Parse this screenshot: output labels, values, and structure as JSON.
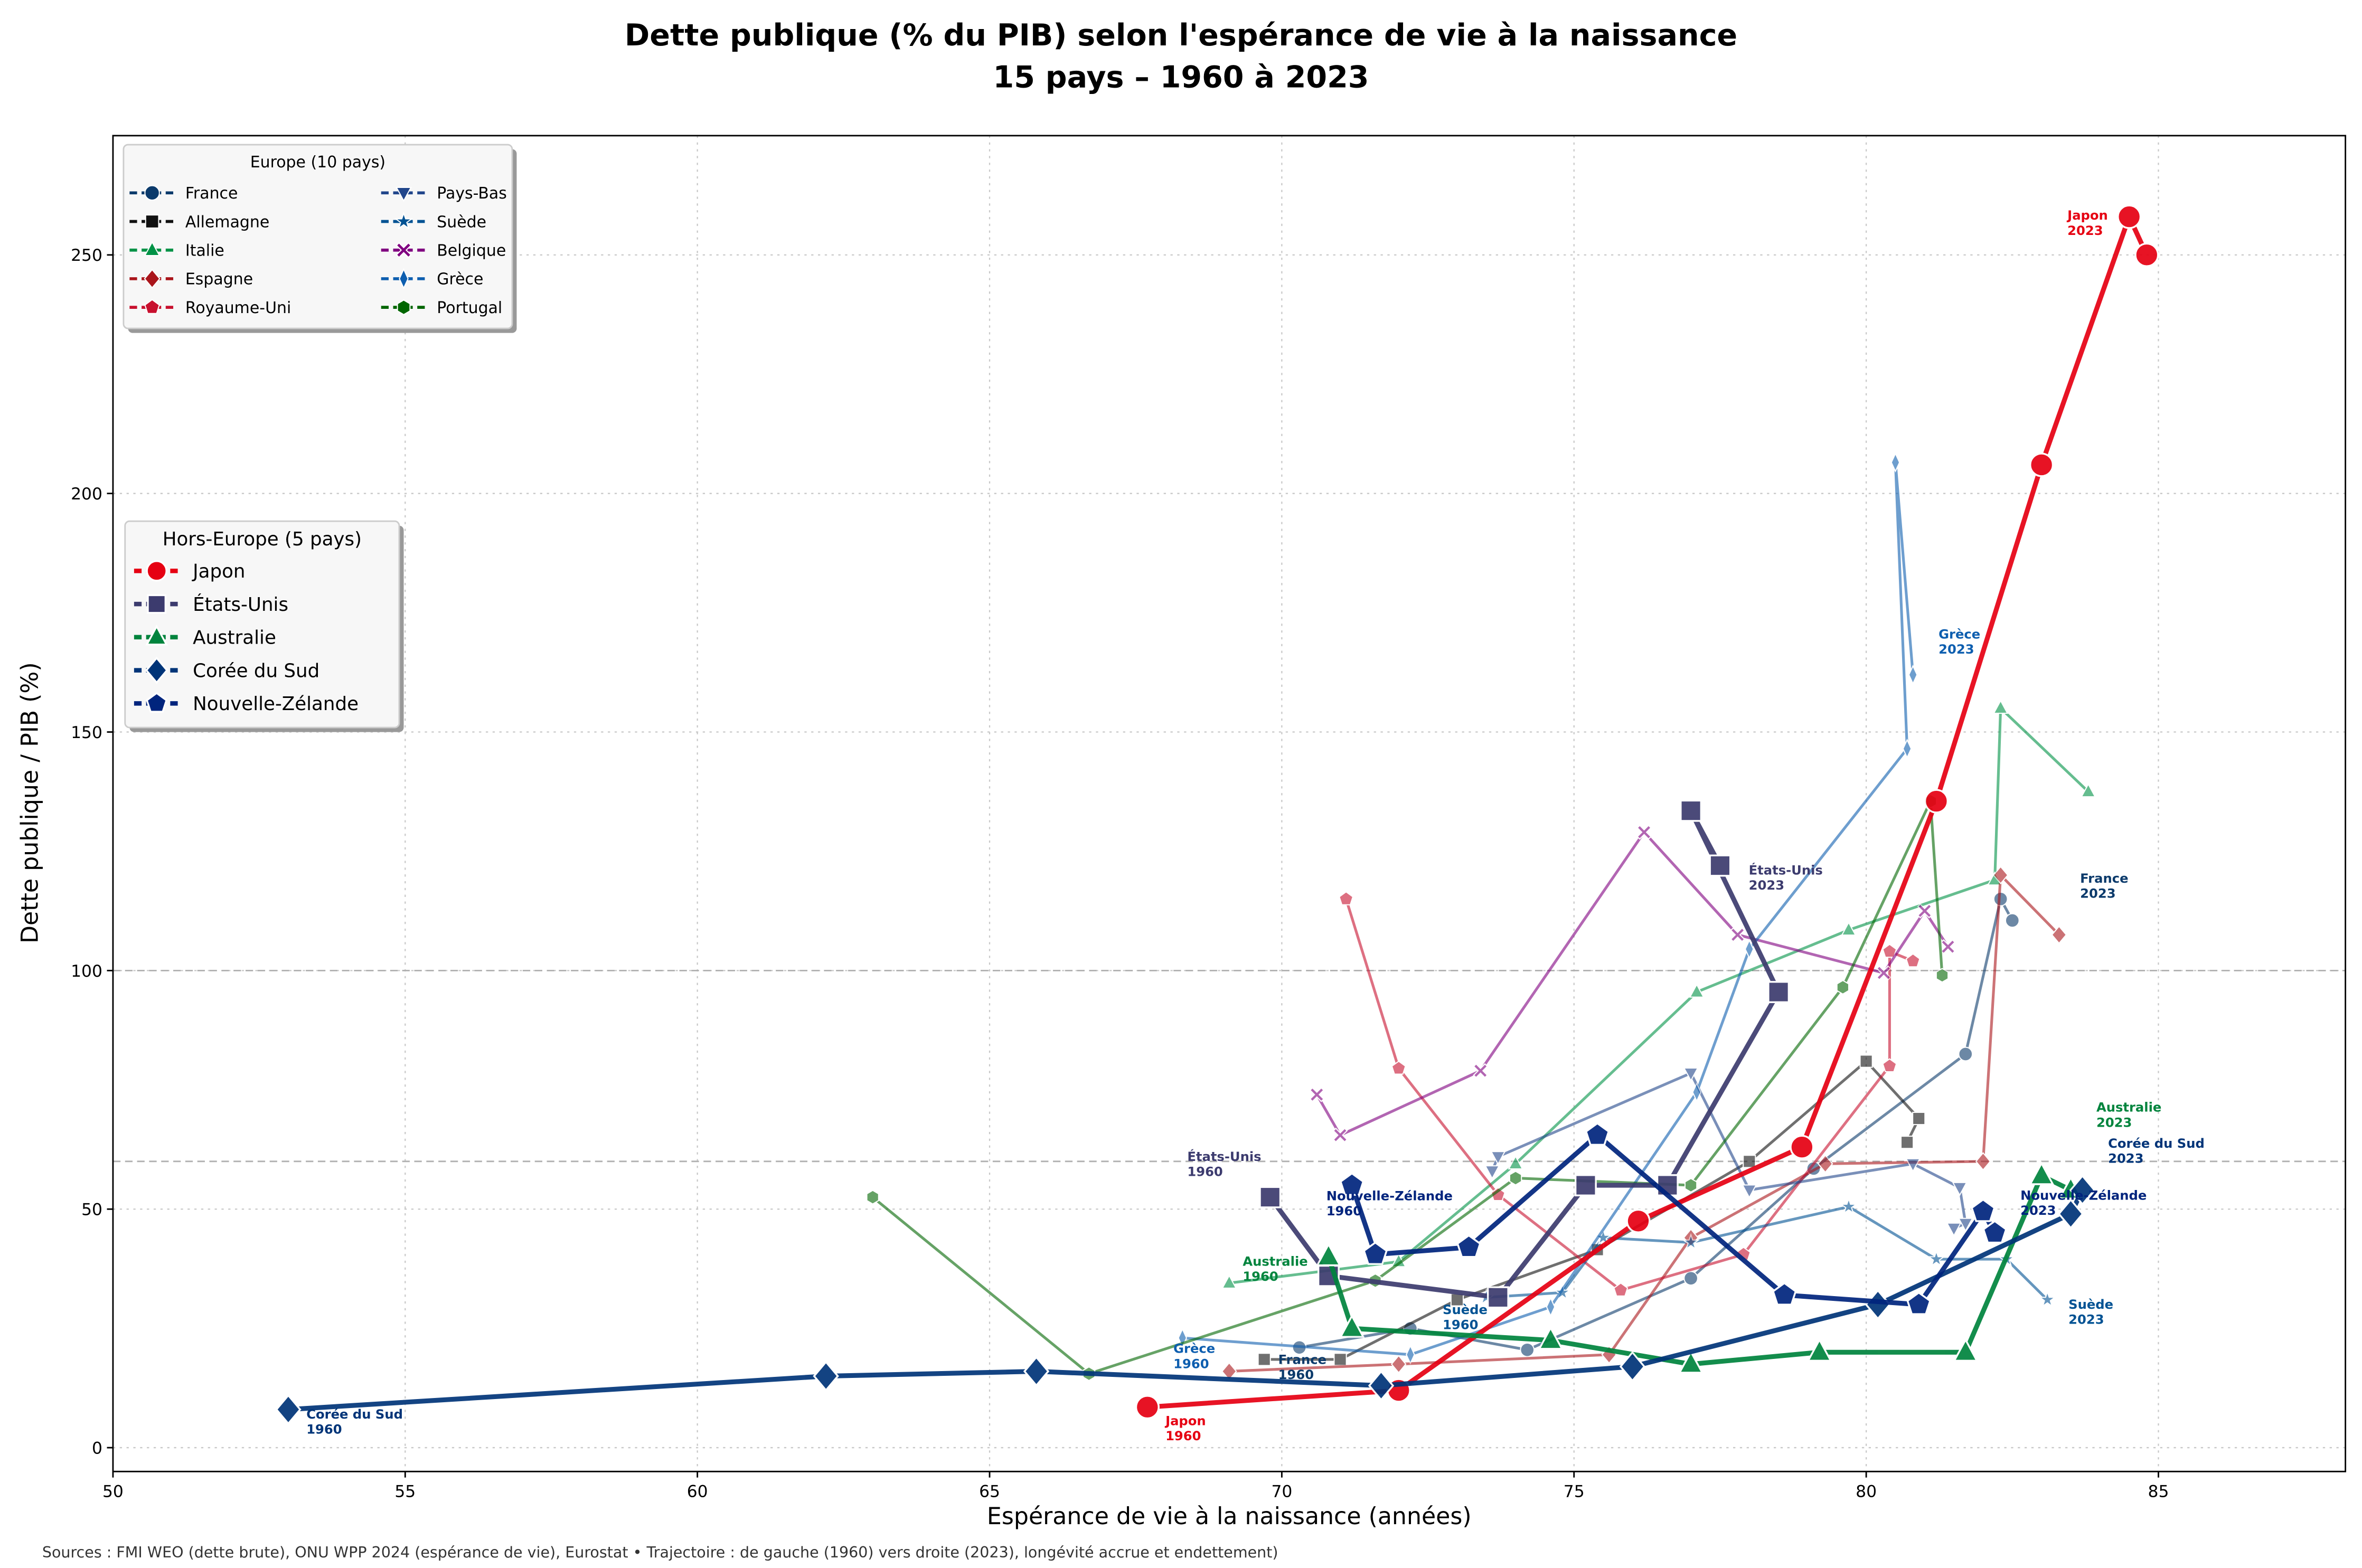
{
  "title_line1": "Dette publique (% du PIB) selon l'espérance de vie à la naissance",
  "title_line2": "15 pays – 1960 à 2023",
  "footer": "Sources : FMI WEO (dette brute), ONU WPP 2024 (espérance de vie), Eurostat • Trajectoire : de gauche (1960) vers droite (2023), longévité accrue et endettement)",
  "chart_data": {
    "type": "line",
    "title": "Dette publique (% du PIB) selon l'espérance de vie à la naissance — 15 pays – 1960 à 2023",
    "xlabel": "Espérance de vie à la naissance (années)",
    "ylabel": "Dette publique / PIB (%)",
    "xlim": [
      50,
      88.2
    ],
    "ylim": [
      -5,
      275
    ],
    "xticks": [
      50,
      55,
      60,
      65,
      70,
      75,
      80,
      85
    ],
    "yticks": [
      0,
      50,
      100,
      150,
      200,
      250
    ],
    "grid": true,
    "reference_lines_y": [
      60,
      100
    ],
    "legends": [
      {
        "title": "Europe (10 pays)",
        "placement": "top-left",
        "columns": 2,
        "entries": [
          "France",
          "Allemagne",
          "Italie",
          "Espagne",
          "Royaume-Uni",
          "Pays-Bas",
          "Suède",
          "Belgique",
          "Grèce",
          "Portugal"
        ]
      },
      {
        "title": "Hors-Europe (5 pays)",
        "placement": "center-left",
        "columns": 1,
        "entries": [
          "Japon",
          "États-Unis",
          "Australie",
          "Corée du Sud",
          "Nouvelle-Zélande"
        ]
      }
    ],
    "series": [
      {
        "name": "France",
        "group": "Europe",
        "color": "#0b3a6b",
        "marker": "circle",
        "x": [
          70.3,
          72.2,
          74.2,
          77.0,
          79.1,
          81.7,
          82.3,
          82.5
        ],
        "y": [
          21,
          25,
          20.5,
          35.5,
          58.5,
          82.5,
          115,
          110.5
        ]
      },
      {
        "name": "Allemagne",
        "group": "Europe",
        "color": "#111111",
        "marker": "square",
        "x": [
          69.7,
          71.0,
          73.0,
          75.4,
          78.0,
          80.0,
          80.9,
          80.7
        ],
        "y": [
          18.5,
          18.5,
          31,
          41.5,
          60,
          81,
          69,
          64
        ]
      },
      {
        "name": "Italie",
        "group": "Europe",
        "color": "#009246",
        "marker": "triangle-up",
        "x": [
          69.1,
          72.0,
          74.0,
          77.1,
          79.7,
          82.2,
          82.3,
          83.8
        ],
        "y": [
          34.5,
          39,
          59.5,
          95.5,
          108.5,
          119,
          155,
          137.5
        ]
      },
      {
        "name": "Espagne",
        "group": "Europe",
        "color": "#aa151b",
        "marker": "diamond",
        "x": [
          69.1,
          72.0,
          75.6,
          77.0,
          79.3,
          82.0,
          82.3,
          83.3
        ],
        "y": [
          16,
          17.5,
          19.5,
          44,
          59.5,
          60,
          120,
          107.5
        ]
      },
      {
        "name": "Royaume-Uni",
        "group": "Europe",
        "color": "#c8102e",
        "marker": "pentagon",
        "x": [
          71.1,
          72.0,
          73.7,
          75.8,
          77.9,
          80.4,
          80.4,
          80.8
        ],
        "y": [
          115,
          79.5,
          53,
          33,
          40.5,
          80,
          104,
          102
        ]
      },
      {
        "name": "Pays-Bas",
        "group": "Europe",
        "color": "#21468b",
        "marker": "triangle-down",
        "x": [
          73.6,
          73.7,
          77.0,
          78.0,
          80.8,
          81.6,
          81.7,
          81.5
        ],
        "y": [
          58,
          61,
          78.5,
          54,
          59.5,
          54.5,
          47,
          46
        ]
      },
      {
        "name": "Suède",
        "group": "Europe",
        "color": "#005293",
        "marker": "star",
        "x": [
          73.5,
          74.8,
          75.5,
          77.0,
          79.7,
          81.2,
          82.4,
          83.1
        ],
        "y": [
          31.5,
          32.5,
          44,
          43,
          50.5,
          39.5,
          39.5,
          31
        ]
      },
      {
        "name": "Belgique",
        "group": "Europe",
        "color": "#800080",
        "marker": "x",
        "x": [
          70.6,
          71.0,
          73.4,
          76.2,
          77.8,
          80.3,
          81.0,
          81.4
        ],
        "y": [
          74,
          65.5,
          79,
          129,
          107.5,
          99.5,
          112.5,
          105
        ]
      },
      {
        "name": "Grèce",
        "group": "Europe",
        "color": "#0d5eaf",
        "marker": "thin-diamond",
        "x": [
          68.3,
          72.2,
          74.6,
          77.1,
          78.0,
          80.7,
          80.5,
          80.8
        ],
        "y": [
          23,
          19.5,
          29.5,
          74.5,
          104.5,
          146.5,
          206.5,
          162
        ]
      },
      {
        "name": "Portugal",
        "group": "Europe",
        "color": "#006600",
        "marker": "hexagon",
        "x": [
          63.0,
          66.7,
          71.6,
          74.0,
          77.0,
          79.6,
          81.1,
          81.3
        ],
        "y": [
          52.5,
          15.5,
          35,
          56.5,
          55,
          96.5,
          135.5,
          99
        ]
      },
      {
        "name": "Japon",
        "group": "Hors-Europe",
        "color": "#e60012",
        "marker": "circle",
        "x": [
          67.7,
          72.0,
          76.1,
          78.9,
          81.2,
          83.0,
          84.5,
          84.8
        ],
        "y": [
          8.5,
          12,
          47.5,
          63,
          135.5,
          206,
          258,
          250
        ]
      },
      {
        "name": "États-Unis",
        "group": "Hors-Europe",
        "color": "#3c3b6e",
        "marker": "square",
        "x": [
          69.8,
          70.8,
          73.7,
          75.2,
          76.6,
          78.5,
          77.0,
          77.5
        ],
        "y": [
          52.5,
          36,
          31.5,
          55,
          55,
          95.5,
          133.5,
          122
        ]
      },
      {
        "name": "Australie",
        "group": "Hors-Europe",
        "color": "#00843d",
        "marker": "triangle-up",
        "x": [
          70.8,
          71.2,
          74.6,
          77.0,
          79.2,
          81.7,
          83.0,
          83.5
        ],
        "y": [
          40,
          25,
          22.5,
          17.5,
          20,
          20,
          57,
          54
        ]
      },
      {
        "name": "Corée du Sud",
        "group": "Hors-Europe",
        "color": "#003478",
        "marker": "diamond",
        "x": [
          53.0,
          62.2,
          65.8,
          71.7,
          76.0,
          80.2,
          83.5,
          83.7
        ],
        "y": [
          8,
          15,
          16,
          13,
          17,
          30,
          49,
          54
        ]
      },
      {
        "name": "Nouvelle-Zélande",
        "group": "Hors-Europe",
        "color": "#00247d",
        "marker": "pentagon",
        "x": [
          71.2,
          71.6,
          73.2,
          75.4,
          78.6,
          80.9,
          82.0,
          82.2
        ],
        "y": [
          55,
          40.5,
          42,
          65.5,
          32,
          30,
          49.5,
          45
        ]
      }
    ],
    "annotations": [
      {
        "series": "Japon",
        "year": "1960"
      },
      {
        "series": "Japon",
        "year": "2023"
      },
      {
        "series": "États-Unis",
        "year": "1960"
      },
      {
        "series": "États-Unis",
        "year": "2023"
      },
      {
        "series": "Australie",
        "year": "1960"
      },
      {
        "series": "Australie",
        "year": "2023"
      },
      {
        "series": "Corée du Sud",
        "year": "1960"
      },
      {
        "series": "Corée du Sud",
        "year": "2023"
      },
      {
        "series": "Nouvelle-Zélande",
        "year": "1960"
      },
      {
        "series": "Nouvelle-Zélande",
        "year": "2023"
      },
      {
        "series": "France",
        "year": "1960"
      },
      {
        "series": "France",
        "year": "2023"
      },
      {
        "series": "Grèce",
        "year": "1960"
      },
      {
        "series": "Grèce",
        "year": "2023"
      },
      {
        "series": "Suède",
        "year": "1960"
      },
      {
        "series": "Suède",
        "year": "2023"
      }
    ]
  }
}
